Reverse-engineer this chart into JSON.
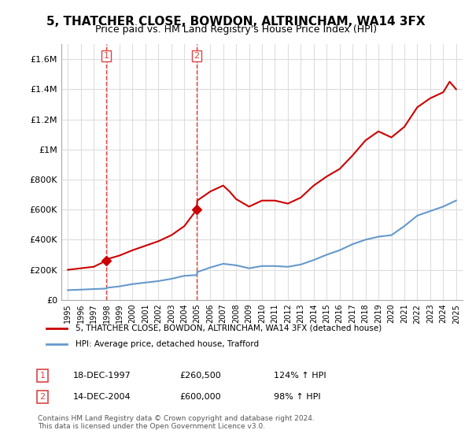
{
  "title": "5, THATCHER CLOSE, BOWDON, ALTRINCHAM, WA14 3FX",
  "subtitle": "Price paid vs. HM Land Registry's House Price Index (HPI)",
  "title_fontsize": 11,
  "subtitle_fontsize": 9,
  "sale1_date": 1997.96,
  "sale1_price": 260500,
  "sale1_label": "1",
  "sale2_date": 2004.96,
  "sale2_price": 600000,
  "sale2_label": "2",
  "ylim": [
    0,
    1700000
  ],
  "xlim": [
    1994.5,
    2025.5
  ],
  "yticks": [
    0,
    200000,
    400000,
    600000,
    800000,
    1000000,
    1200000,
    1400000,
    1600000
  ],
  "ytick_labels": [
    "£0",
    "£200K",
    "£400K",
    "£600K",
    "£800K",
    "£1M",
    "£1.2M",
    "£1.4M",
    "£1.6M"
  ],
  "xticks": [
    1995,
    1996,
    1997,
    1998,
    1999,
    2000,
    2001,
    2002,
    2003,
    2004,
    2005,
    2006,
    2007,
    2008,
    2009,
    2010,
    2011,
    2012,
    2013,
    2014,
    2015,
    2016,
    2017,
    2018,
    2019,
    2020,
    2021,
    2022,
    2023,
    2024,
    2025
  ],
  "red_line_color": "#cc0000",
  "blue_line_color": "#6699cc",
  "vline_color": "#dd4444",
  "background_color": "#ffffff",
  "grid_color": "#dddddd",
  "legend_label_red": "5, THATCHER CLOSE, BOWDON, ALTRINCHAM, WA14 3FX (detached house)",
  "legend_label_blue": "HPI: Average price, detached house, Trafford",
  "table_row1": [
    "1",
    "18-DEC-1997",
    "£260,500",
    "124% ↑ HPI"
  ],
  "table_row2": [
    "2",
    "14-DEC-2004",
    "£600,000",
    "98% ↑ HPI"
  ],
  "footer": "Contains HM Land Registry data © Crown copyright and database right 2024.\nThis data is licensed under the Open Government Licence v3.0.",
  "hpi_years": [
    1995,
    1996,
    1997,
    1997.96,
    1998,
    1999,
    2000,
    2001,
    2002,
    2003,
    2004,
    2004.96,
    2005,
    2006,
    2007,
    2008,
    2009,
    2010,
    2011,
    2012,
    2013,
    2014,
    2015,
    2016,
    2017,
    2018,
    2019,
    2020,
    2021,
    2022,
    2023,
    2024,
    2025
  ],
  "hpi_values": [
    65000,
    68000,
    72000,
    75000,
    80000,
    90000,
    105000,
    115000,
    125000,
    140000,
    160000,
    165000,
    185000,
    215000,
    240000,
    230000,
    210000,
    225000,
    225000,
    220000,
    235000,
    265000,
    300000,
    330000,
    370000,
    400000,
    420000,
    430000,
    490000,
    560000,
    590000,
    620000,
    660000
  ],
  "red_years": [
    1995,
    1996,
    1997,
    1997.96,
    1998,
    1999,
    2000,
    2001,
    2002,
    2003,
    2004,
    2004.96,
    2005,
    2006,
    2007,
    2007.5,
    2008,
    2009,
    2010,
    2011,
    2012,
    2013,
    2014,
    2015,
    2016,
    2017,
    2018,
    2019,
    2020,
    2021,
    2022,
    2023,
    2024,
    2024.5,
    2025
  ],
  "red_values": [
    200000,
    210000,
    220000,
    260500,
    270000,
    295000,
    330000,
    360000,
    390000,
    430000,
    490000,
    600000,
    660000,
    720000,
    760000,
    720000,
    670000,
    620000,
    660000,
    660000,
    640000,
    680000,
    760000,
    820000,
    870000,
    960000,
    1060000,
    1120000,
    1080000,
    1150000,
    1280000,
    1340000,
    1380000,
    1450000,
    1400000
  ]
}
